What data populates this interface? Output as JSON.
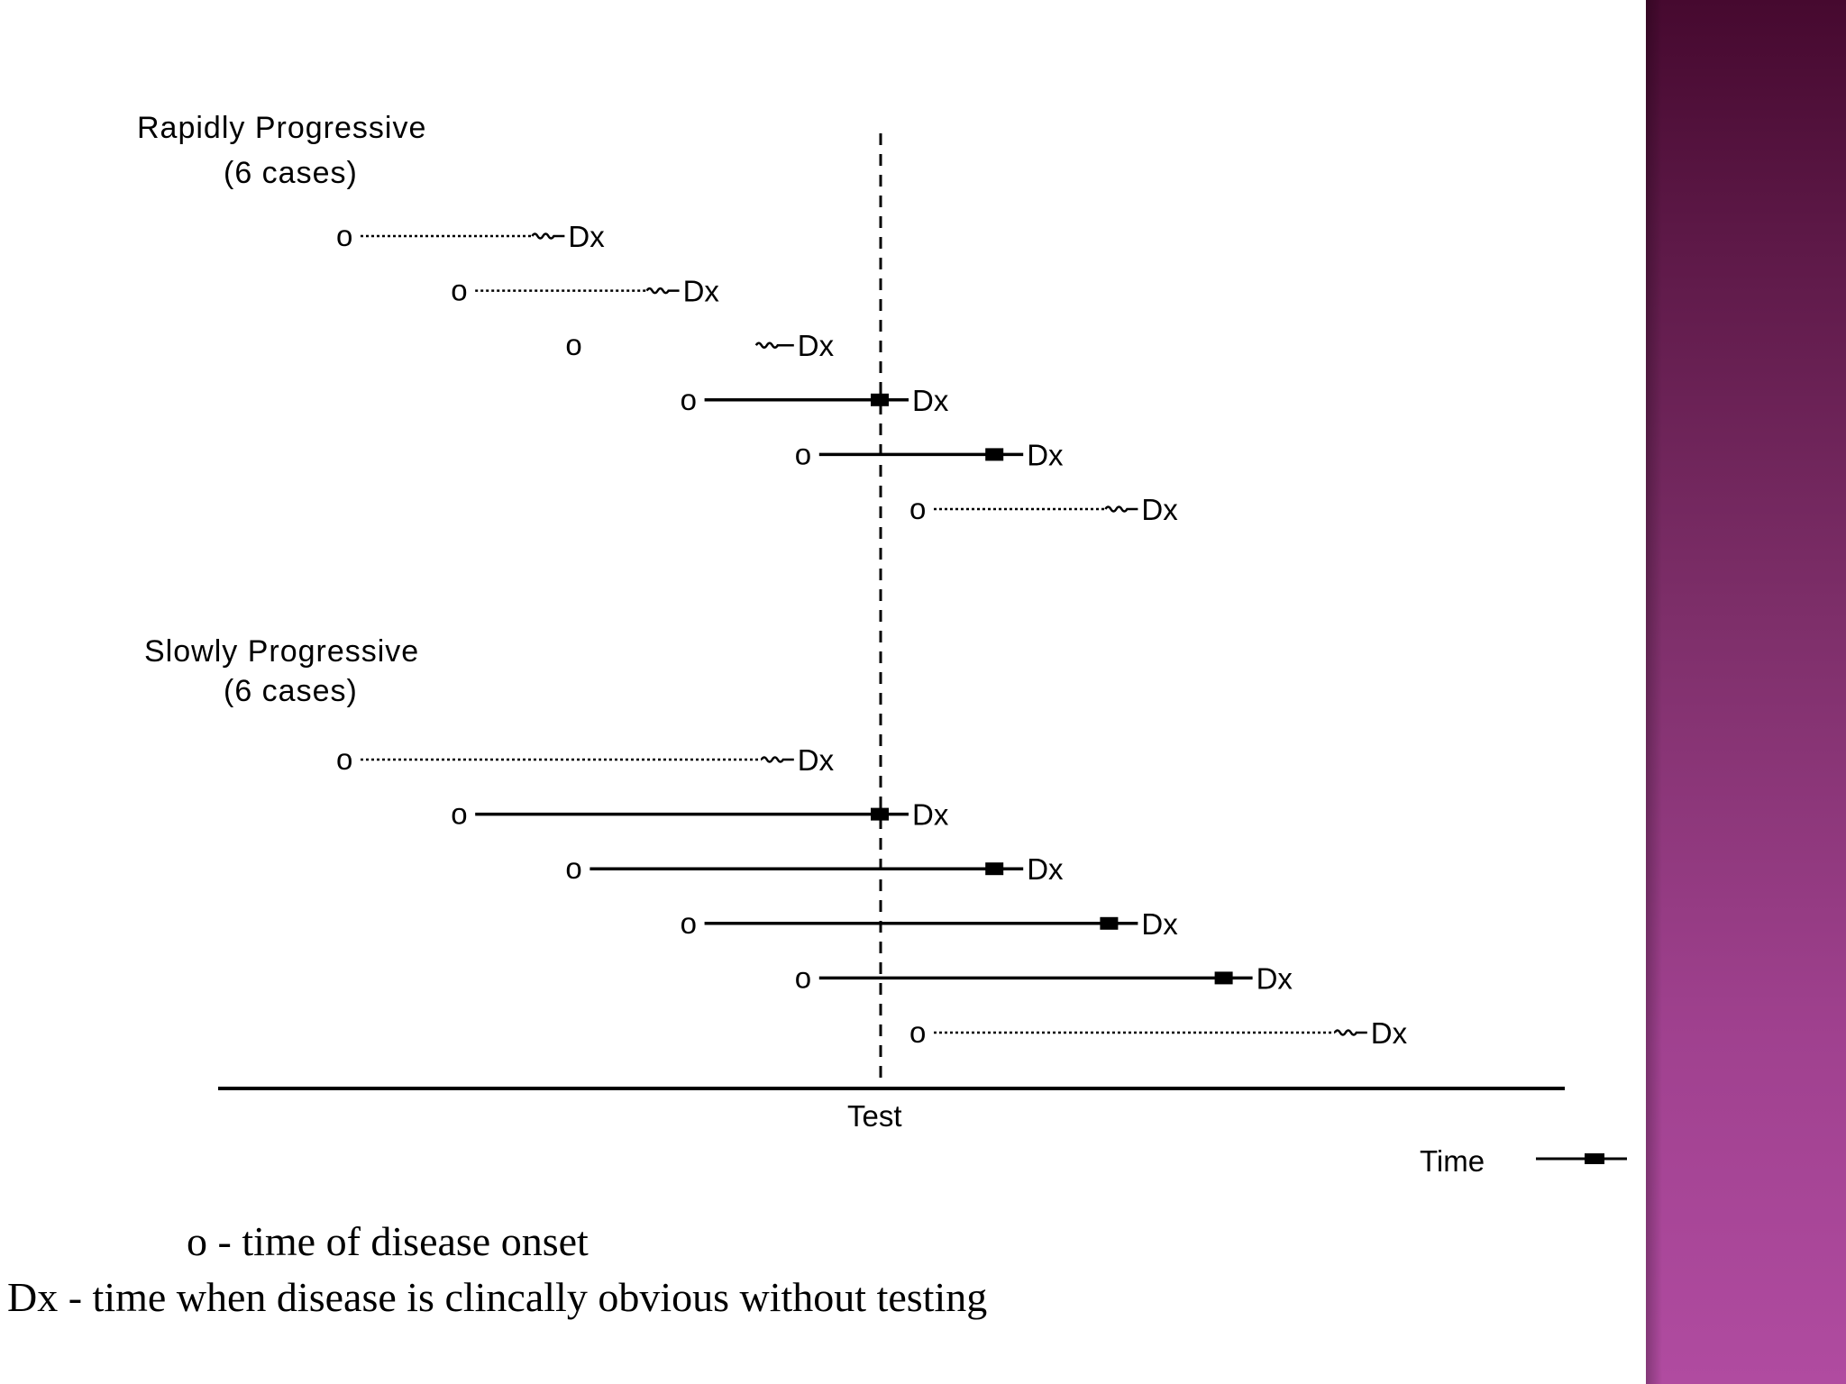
{
  "groups": [
    {
      "title": "Rapidly Progressive",
      "subtitle": "(6 cases)",
      "cases": [
        {
          "onset": 0,
          "dx": 2,
          "style": "dotted"
        },
        {
          "onset": 1,
          "dx": 3,
          "style": "dotted"
        },
        {
          "onset": 2,
          "dx": 4,
          "style": "short"
        },
        {
          "onset": 3,
          "dx": 5,
          "style": "solid"
        },
        {
          "onset": 4,
          "dx": 6,
          "style": "solid"
        },
        {
          "onset": 5,
          "dx": 7,
          "style": "dotted"
        }
      ]
    },
    {
      "title": "Slowly Progressive",
      "subtitle": "(6 cases)",
      "cases": [
        {
          "onset": 0,
          "dx": 4,
          "style": "dotted"
        },
        {
          "onset": 1,
          "dx": 5,
          "style": "solid"
        },
        {
          "onset": 2,
          "dx": 6,
          "style": "solid"
        },
        {
          "onset": 3,
          "dx": 7,
          "style": "solid"
        },
        {
          "onset": 4,
          "dx": 8,
          "style": "solid"
        },
        {
          "onset": 5,
          "dx": 9,
          "style": "dotted"
        }
      ]
    }
  ],
  "onset_symbol": "o",
  "dx_label": "Dx",
  "test_position": 4.5,
  "test_label": "Test",
  "time_label": "Time",
  "legend": {
    "onset_text": "o - time of disease onset",
    "dx_text": "Dx - time when disease is clincally obvious without testing"
  },
  "colors": {
    "sidebar_top": "#46092f",
    "sidebar_bottom": "#b04ba0",
    "ink": "#000000"
  }
}
